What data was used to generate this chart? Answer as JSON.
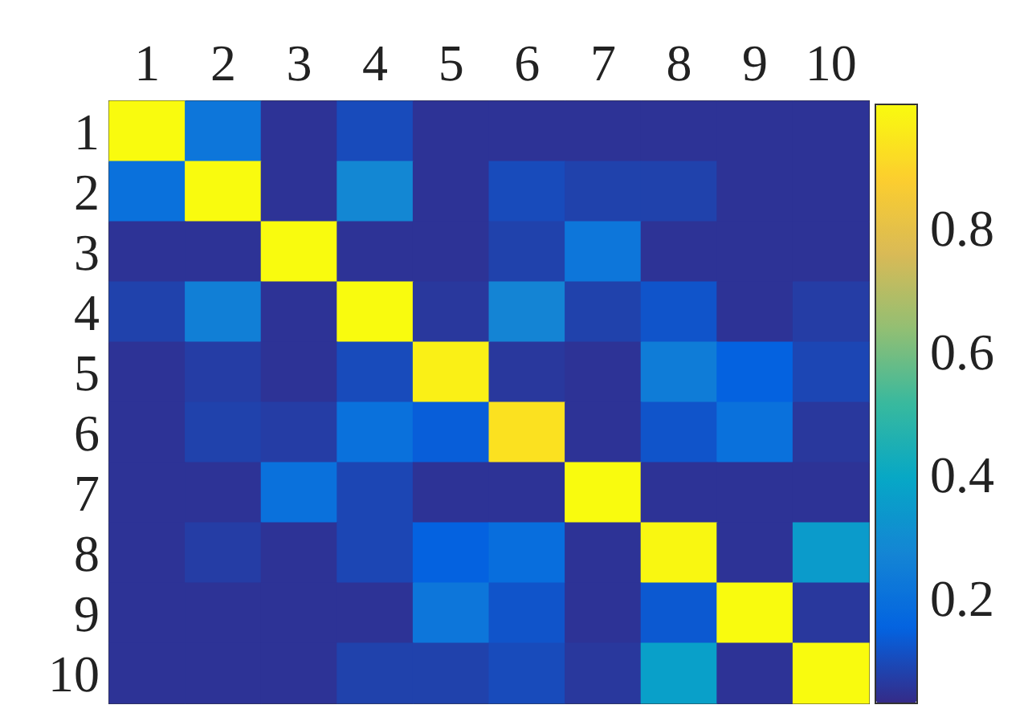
{
  "chart_data": {
    "type": "heatmap",
    "categories": [
      "1",
      "2",
      "3",
      "4",
      "5",
      "6",
      "7",
      "8",
      "9",
      "10"
    ],
    "y_categories": [
      "1",
      "2",
      "3",
      "4",
      "5",
      "6",
      "7",
      "8",
      "9",
      "10"
    ],
    "cells": [
      [
        1,
        0.22,
        0.05,
        0.1,
        0.05,
        0.05,
        0.05,
        0.05,
        0.05,
        0.05
      ],
      [
        0.2,
        1,
        0.05,
        0.28,
        0.05,
        0.1,
        0.08,
        0.08,
        0.05,
        0.05
      ],
      [
        0.05,
        0.05,
        1,
        0.05,
        0.05,
        0.08,
        0.22,
        0.05,
        0.05,
        0.05
      ],
      [
        0.08,
        0.25,
        0.05,
        1,
        0.06,
        0.27,
        0.08,
        0.12,
        0.05,
        0.07
      ],
      [
        0.05,
        0.07,
        0.05,
        0.1,
        0.97,
        0.06,
        0.05,
        0.24,
        0.15,
        0.09
      ],
      [
        0.05,
        0.08,
        0.07,
        0.2,
        0.14,
        0.93,
        0.05,
        0.12,
        0.2,
        0.06
      ],
      [
        0.05,
        0.05,
        0.2,
        0.09,
        0.05,
        0.05,
        1,
        0.05,
        0.05,
        0.05
      ],
      [
        0.05,
        0.07,
        0.05,
        0.09,
        0.15,
        0.19,
        0.05,
        0.99,
        0.05,
        0.35
      ],
      [
        0.05,
        0.05,
        0.05,
        0.05,
        0.22,
        0.12,
        0.05,
        0.13,
        1,
        0.06
      ],
      [
        0.05,
        0.05,
        0.05,
        0.08,
        0.08,
        0.1,
        0.06,
        0.37,
        0.05,
        1
      ]
    ],
    "clim": [
      0.03,
      1
    ],
    "cticks": [
      0.2,
      0.4,
      0.6,
      0.8
    ]
  }
}
